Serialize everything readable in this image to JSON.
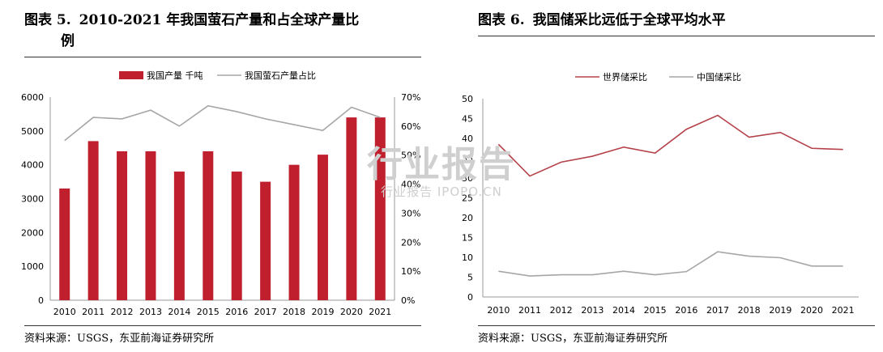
{
  "charts": {
    "left": {
      "figure_number": "图表 5.",
      "title": "2010-2021 年我国萤石产量和占全球产量比",
      "title_wrap": "例",
      "source": "资料来源：USGS，东亚前海证券研究所"
    },
    "right": {
      "figure_number": "图表 6.",
      "title": "我国储采比远低于全球平均水平",
      "source": "资料来源：USGS，东亚前海证券研究所"
    }
  },
  "watermark": {
    "main": "行业报告",
    "sub": "行业报告 IPOPO.CN"
  },
  "chart_data": [
    {
      "type": "bar",
      "categories": [
        "2010",
        "2011",
        "2012",
        "2013",
        "2014",
        "2015",
        "2016",
        "2017",
        "2018",
        "2019",
        "2020",
        "2021"
      ],
      "series": [
        {
          "name": "我国产量  千吨",
          "type": "bar",
          "axis": "left",
          "values": [
            3300,
            4700,
            4400,
            4400,
            3800,
            4400,
            3800,
            3500,
            4000,
            4300,
            5400,
            5400
          ],
          "color": "#c0202e"
        },
        {
          "name": "我国萤石产量占比",
          "type": "line",
          "axis": "right",
          "values": [
            55,
            63,
            62.5,
            65.5,
            60,
            67,
            65,
            62.5,
            60.5,
            58.5,
            66.5,
            63
          ],
          "color": "#a6a6a6"
        }
      ],
      "y_left": {
        "min": 0,
        "max": 6000,
        "ticks": [
          "0",
          "1000",
          "2000",
          "3000",
          "4000",
          "5000",
          "6000"
        ]
      },
      "y_right": {
        "min": 0,
        "max": 70,
        "ticks": [
          "0%",
          "10%",
          "20%",
          "30%",
          "40%",
          "50%",
          "60%",
          "70%"
        ]
      },
      "legend": "top-center",
      "grid": false
    },
    {
      "type": "line",
      "categories": [
        "2010",
        "2011",
        "2012",
        "2013",
        "2014",
        "2015",
        "2016",
        "2017",
        "2018",
        "2019",
        "2020",
        "2021"
      ],
      "series": [
        {
          "name": "世界储采比",
          "values": [
            38.5,
            30.5,
            34,
            35.5,
            37.8,
            36.3,
            42.3,
            45.8,
            40.3,
            41.5,
            37.5,
            37.2
          ],
          "color": "#b5424a"
        },
        {
          "name": "中国储采比",
          "values": [
            6.5,
            5.3,
            5.6,
            5.6,
            6.5,
            5.6,
            6.4,
            11.4,
            10.3,
            9.9,
            7.8,
            7.8
          ],
          "color": "#a6a6a6"
        }
      ],
      "y": {
        "min": 0,
        "max": 50,
        "ticks": [
          "0",
          "5",
          "10",
          "15",
          "20",
          "25",
          "30",
          "35",
          "40",
          "45",
          "50"
        ]
      },
      "legend": "top-center",
      "grid": false
    }
  ]
}
